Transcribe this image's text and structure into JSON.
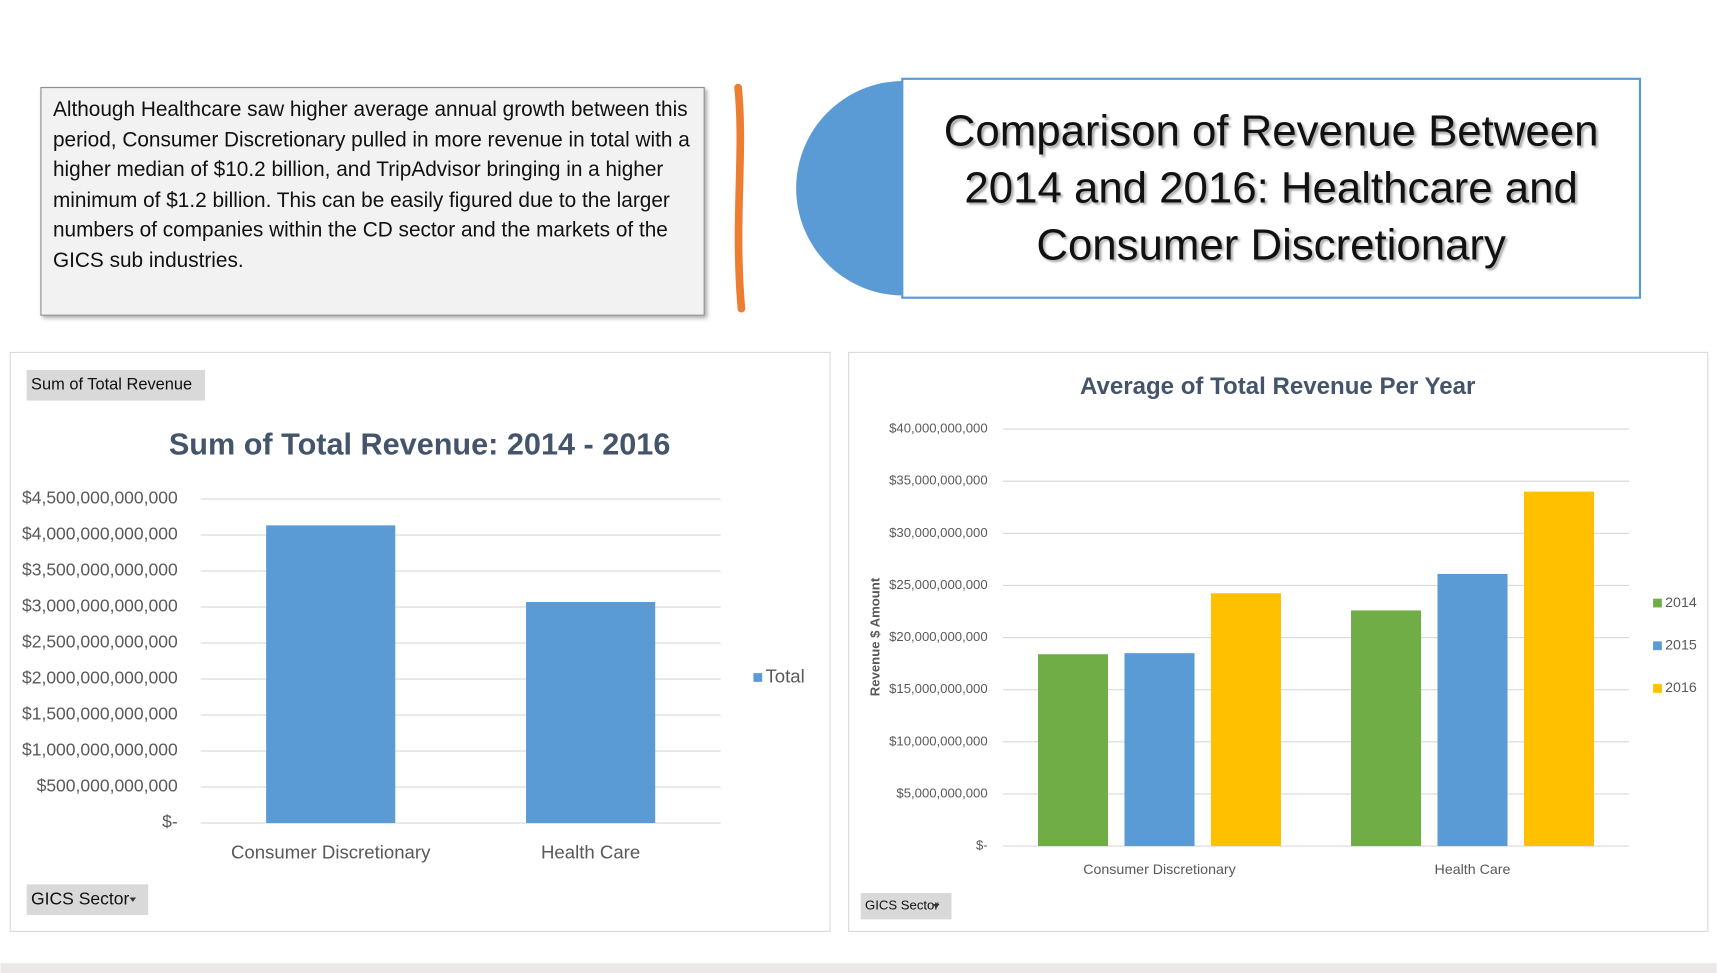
{
  "note": "Although Healthcare saw higher average annual growth between this period, Consumer Discretionary pulled in more revenue in total with a higher median of $10.2 billion, and TripAdvisor bringing in a higher minimum of $1.2 billion. This can be easily figured due to the larger numbers of companies within the CD sector and the markets of the GICS sub industries.",
  "title": "Comparison of Revenue Between 2014 and 2016: Healthcare and Consumer Discretionary",
  "chart_data": [
    {
      "type": "bar",
      "title": "Sum of Total Revenue: 2014 - 2016",
      "filter_button": "Sum of  Total Revenue",
      "field_button": "GICS Sector",
      "categories": [
        "Consumer Discretionary",
        "Health Care"
      ],
      "series": [
        {
          "name": "Total",
          "color": "#5b9bd5",
          "values": [
            4135000000000,
            3070000000000
          ]
        }
      ],
      "ylim": [
        0,
        4500000000000
      ],
      "yticks": [
        {
          "value": 0,
          "label": "$-"
        },
        {
          "value": 500000000000,
          "label": "$500,000,000,000"
        },
        {
          "value": 1000000000000,
          "label": "$1,000,000,000,000"
        },
        {
          "value": 1500000000000,
          "label": "$1,500,000,000,000"
        },
        {
          "value": 2000000000000,
          "label": "$2,000,000,000,000"
        },
        {
          "value": 2500000000000,
          "label": "$2,500,000,000,000"
        },
        {
          "value": 3000000000000,
          "label": "$3,000,000,000,000"
        },
        {
          "value": 3500000000000,
          "label": "$3,500,000,000,000"
        },
        {
          "value": 4000000000000,
          "label": "$4,000,000,000,000"
        },
        {
          "value": 4500000000000,
          "label": "$4,500,000,000,000"
        }
      ],
      "grid": true,
      "legend": "right"
    },
    {
      "type": "bar",
      "title": "Average of Total Revenue Per Year",
      "y_label": "Revenue $ Amount",
      "field_button": "GICS Sector",
      "categories": [
        "Consumer Discretionary",
        "Health Care"
      ],
      "series": [
        {
          "name": "2014",
          "color": "#70ad47",
          "values": [
            18400000000,
            22600000000
          ]
        },
        {
          "name": "2015",
          "color": "#5b9bd5",
          "values": [
            18500000000,
            26100000000
          ]
        },
        {
          "name": "2016",
          "color": "#ffc000",
          "values": [
            24250000000,
            34000000000
          ]
        }
      ],
      "ylim": [
        0,
        40000000000
      ],
      "yticks": [
        {
          "value": 0,
          "label": "$-"
        },
        {
          "value": 5000000000,
          "label": "$5,000,000,000"
        },
        {
          "value": 10000000000,
          "label": "$10,000,000,000"
        },
        {
          "value": 15000000000,
          "label": "$15,000,000,000"
        },
        {
          "value": 20000000000,
          "label": "$20,000,000,000"
        },
        {
          "value": 25000000000,
          "label": "$25,000,000,000"
        },
        {
          "value": 30000000000,
          "label": "$30,000,000,000"
        },
        {
          "value": 35000000000,
          "label": "$35,000,000,000"
        },
        {
          "value": 40000000000,
          "label": "$40,000,000,000"
        }
      ],
      "grid": true,
      "legend": "right"
    }
  ]
}
